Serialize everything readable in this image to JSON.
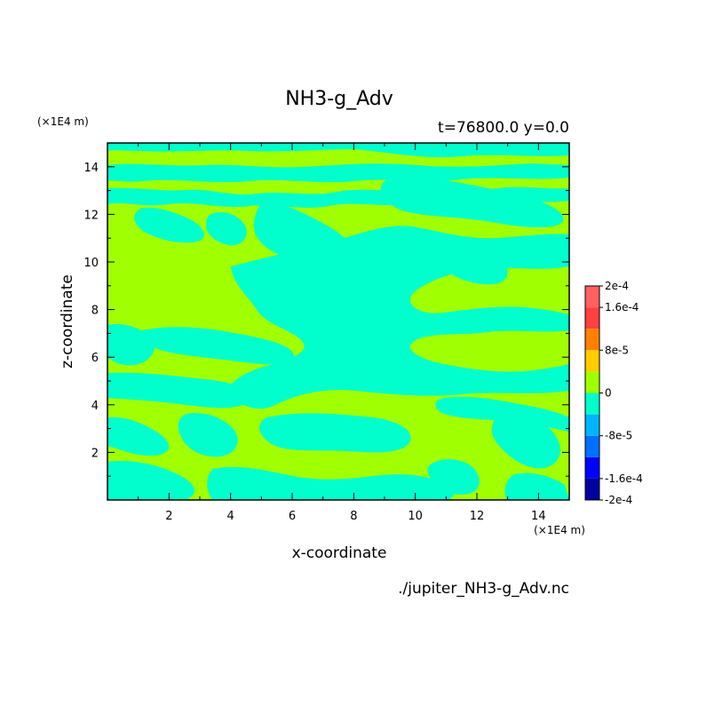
{
  "chart_data": {
    "type": "heatmap",
    "title": "NH3-g_Adv",
    "subtitle": "t=76800.0 y=0.0",
    "xlabel": "x-coordinate",
    "ylabel": "z-coordinate",
    "x_unit": "(×1E4 m)",
    "y_unit": "(×1E4 m)",
    "source_file": "./jupiter_NH3-g_Adv.nc",
    "xlim": [
      0,
      15
    ],
    "ylim": [
      0,
      15
    ],
    "xticks": [
      "2",
      "4",
      "6",
      "8",
      "10",
      "12",
      "14"
    ],
    "yticks": [
      "2",
      "4",
      "6",
      "8",
      "10",
      "12",
      "14"
    ],
    "colorbar": {
      "labels": [
        "2e-4",
        "1.6e-4",
        "8e-5",
        "0",
        "-8e-5",
        "-1.6e-4",
        "-2e-4"
      ],
      "levels": [
        -0.0002,
        -0.00016,
        -0.00012,
        -8e-05,
        -4e-05,
        0,
        4e-05,
        8e-05,
        0.00012,
        0.00016,
        0.0002
      ],
      "colors": [
        "#0000a0",
        "#0000ff",
        "#0070ff",
        "#00b4ff",
        "#00ffcc",
        "#a0ff00",
        "#ffcc00",
        "#ff8000",
        "#ff4040",
        "#ff6060"
      ]
    },
    "field_colors": {
      "positive": "#a0ff00",
      "negative": "#00ffcc"
    },
    "grid": false
  }
}
